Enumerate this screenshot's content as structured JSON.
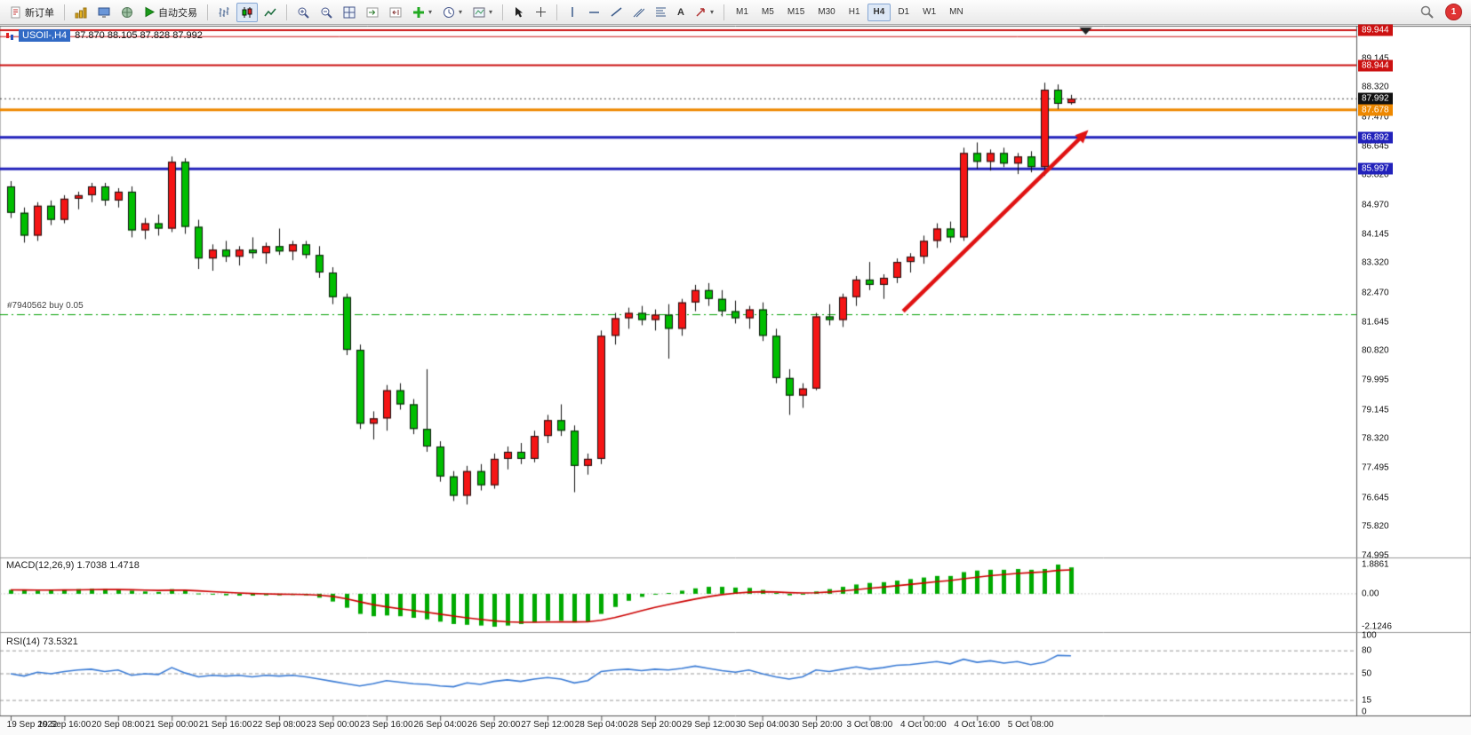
{
  "toolbar": {
    "new_order_label": "新订单",
    "autotrade_label": "自动交易",
    "text_tool_label": "A",
    "timeframes": [
      "M1",
      "M5",
      "M15",
      "M30",
      "H1",
      "H4",
      "D1",
      "W1",
      "MN"
    ],
    "active_timeframe": "H4",
    "notification_badge": "1"
  },
  "chart": {
    "symbol_label": "USOIl-,H4",
    "ohlc_text": "87.870 88.105 87.828 87.992",
    "position_label": "#7940562 buy 0.05"
  },
  "indicators": {
    "macd": {
      "name": "MACD(12,26,9)",
      "main_value": "1.7038",
      "signal_value": "1.4718"
    },
    "rsi": {
      "name": "RSI(14)",
      "value": "73.5321"
    }
  },
  "price_axis": {
    "labels": [
      "89.145",
      "88.320",
      "87.470",
      "86.645",
      "85.820",
      "84.970",
      "84.145",
      "83.320",
      "82.470",
      "81.645",
      "80.820",
      "79.995",
      "79.145",
      "78.320",
      "77.495",
      "76.645",
      "75.820",
      "74.995"
    ],
    "tags": [
      {
        "text": "89.944",
        "bg": "#CC1111"
      },
      {
        "text": "88.944",
        "bg": "#CC1111"
      },
      {
        "text": "87.992",
        "bg": "#111111"
      },
      {
        "text": "87.678",
        "bg": "#EE8800"
      },
      {
        "text": "86.892",
        "bg": "#2222BB"
      },
      {
        "text": "85.997",
        "bg": "#2222BB"
      }
    ]
  },
  "chart_data": {
    "type": "candlestick",
    "symbol": "USOIl-",
    "timeframe": "H4",
    "ohlc_current": {
      "open": 87.87,
      "high": 88.105,
      "low": 87.828,
      "close": 87.992
    },
    "candles": [
      [
        85.5,
        85.65,
        84.6,
        84.75
      ],
      [
        84.75,
        84.9,
        83.9,
        84.1
      ],
      [
        84.1,
        85.05,
        83.95,
        84.95
      ],
      [
        84.95,
        85.1,
        84.4,
        84.55
      ],
      [
        84.55,
        85.25,
        84.45,
        85.15
      ],
      [
        85.15,
        85.35,
        84.85,
        85.25
      ],
      [
        85.25,
        85.6,
        85.05,
        85.5
      ],
      [
        85.5,
        85.6,
        84.95,
        85.1
      ],
      [
        85.1,
        85.45,
        84.9,
        85.35
      ],
      [
        85.35,
        85.5,
        84.05,
        84.25
      ],
      [
        84.25,
        84.6,
        84.0,
        84.45
      ],
      [
        84.45,
        84.7,
        84.1,
        84.3
      ],
      [
        84.3,
        86.35,
        84.2,
        86.2
      ],
      [
        86.2,
        86.3,
        84.15,
        84.35
      ],
      [
        84.35,
        84.55,
        83.15,
        83.45
      ],
      [
        83.45,
        83.85,
        83.1,
        83.7
      ],
      [
        83.7,
        83.95,
        83.35,
        83.5
      ],
      [
        83.5,
        83.8,
        83.25,
        83.7
      ],
      [
        83.7,
        84.05,
        83.45,
        83.6
      ],
      [
        83.6,
        83.9,
        83.3,
        83.8
      ],
      [
        83.8,
        84.3,
        83.55,
        83.65
      ],
      [
        83.65,
        83.95,
        83.4,
        83.85
      ],
      [
        83.85,
        83.95,
        83.45,
        83.55
      ],
      [
        83.55,
        83.8,
        82.9,
        83.05
      ],
      [
        83.05,
        83.2,
        82.15,
        82.35
      ],
      [
        82.35,
        82.45,
        80.7,
        80.85
      ],
      [
        80.85,
        81.0,
        78.6,
        78.75
      ],
      [
        78.75,
        79.1,
        78.3,
        78.9
      ],
      [
        78.9,
        79.85,
        78.55,
        79.7
      ],
      [
        79.7,
        79.9,
        79.15,
        79.3
      ],
      [
        79.3,
        79.45,
        78.45,
        78.6
      ],
      [
        78.6,
        80.3,
        77.95,
        78.1
      ],
      [
        78.1,
        78.25,
        77.1,
        77.25
      ],
      [
        77.25,
        77.4,
        76.55,
        76.7
      ],
      [
        76.7,
        77.55,
        76.45,
        77.4
      ],
      [
        77.4,
        77.6,
        76.85,
        77.0
      ],
      [
        77.0,
        77.9,
        76.9,
        77.75
      ],
      [
        77.75,
        78.1,
        77.45,
        77.95
      ],
      [
        77.95,
        78.2,
        77.6,
        77.75
      ],
      [
        77.75,
        78.55,
        77.65,
        78.4
      ],
      [
        78.4,
        79.0,
        78.2,
        78.85
      ],
      [
        78.85,
        79.3,
        78.4,
        78.55
      ],
      [
        78.55,
        78.7,
        76.8,
        77.55
      ],
      [
        77.55,
        77.9,
        77.3,
        77.75
      ],
      [
        77.75,
        81.4,
        77.6,
        81.25
      ],
      [
        81.25,
        81.9,
        81.0,
        81.75
      ],
      [
        81.75,
        82.05,
        81.45,
        81.9
      ],
      [
        81.9,
        82.1,
        81.55,
        81.7
      ],
      [
        81.7,
        82.0,
        81.4,
        81.85
      ],
      [
        81.85,
        82.15,
        80.6,
        81.45
      ],
      [
        81.45,
        82.3,
        81.25,
        82.2
      ],
      [
        82.2,
        82.7,
        81.95,
        82.55
      ],
      [
        82.55,
        82.75,
        82.1,
        82.3
      ],
      [
        82.3,
        82.55,
        81.8,
        81.95
      ],
      [
        81.95,
        82.25,
        81.6,
        81.75
      ],
      [
        81.75,
        82.1,
        81.45,
        82.0
      ],
      [
        82.0,
        82.2,
        81.1,
        81.25
      ],
      [
        81.25,
        81.45,
        79.9,
        80.05
      ],
      [
        80.05,
        80.3,
        79.0,
        79.55
      ],
      [
        79.55,
        79.9,
        79.2,
        79.75
      ],
      [
        79.75,
        81.9,
        79.7,
        81.8
      ],
      [
        81.8,
        82.15,
        81.55,
        81.7
      ],
      [
        81.7,
        82.45,
        81.5,
        82.35
      ],
      [
        82.35,
        82.95,
        82.1,
        82.85
      ],
      [
        82.85,
        83.35,
        82.55,
        82.7
      ],
      [
        82.7,
        83.0,
        82.3,
        82.9
      ],
      [
        82.9,
        83.45,
        82.75,
        83.35
      ],
      [
        83.35,
        83.6,
        83.05,
        83.5
      ],
      [
        83.5,
        84.1,
        83.3,
        83.95
      ],
      [
        83.95,
        84.45,
        83.75,
        84.3
      ],
      [
        84.3,
        84.5,
        83.9,
        84.05
      ],
      [
        84.05,
        86.6,
        83.95,
        86.45
      ],
      [
        86.45,
        86.75,
        86.0,
        86.2
      ],
      [
        86.2,
        86.55,
        85.95,
        86.45
      ],
      [
        86.45,
        86.6,
        86.05,
        86.15
      ],
      [
        86.15,
        86.45,
        85.85,
        86.35
      ],
      [
        86.35,
        86.5,
        85.9,
        86.05
      ],
      [
        86.05,
        88.45,
        85.8,
        88.25
      ],
      [
        88.25,
        88.4,
        87.7,
        87.85
      ],
      [
        87.87,
        88.105,
        87.828,
        87.992
      ]
    ],
    "time_labels": [
      "19 Sep 2022",
      "19 Sep 16:00",
      "20 Sep 08:00",
      "21 Sep 00:00",
      "21 Sep 16:00",
      "22 Sep 08:00",
      "23 Sep 00:00",
      "23 Sep 16:00",
      "26 Sep 04:00",
      "26 Sep 20:00",
      "27 Sep 12:00",
      "28 Sep 04:00",
      "28 Sep 20:00",
      "29 Sep 12:00",
      "30 Sep 04:00",
      "30 Sep 20:00",
      "3 Oct 08:00",
      "4 Oct 00:00",
      "4 Oct 16:00",
      "5 Oct 08:00"
    ],
    "hlines": [
      {
        "price": 89.944,
        "color": "#CC1111",
        "width": 2
      },
      {
        "price": 89.76,
        "color": "#CC1111",
        "width": 1
      },
      {
        "price": 88.944,
        "color": "#CC1111",
        "width": 2
      },
      {
        "price": 87.678,
        "color": "#EE8800",
        "width": 3
      },
      {
        "price": 86.892,
        "color": "#2222BB",
        "width": 3
      },
      {
        "price": 85.997,
        "color": "#2222BB",
        "width": 3
      }
    ],
    "current_price": 87.992,
    "position_line": {
      "price": 81.85,
      "label": "#7940562 buy 0.05"
    },
    "trend_arrow": {
      "from_index": 66.5,
      "from_price": 81.95,
      "to_index": 80.3,
      "to_price": 87.1
    },
    "shift_marker_index": 80.1,
    "macd": {
      "main": [
        0.25,
        0.22,
        0.2,
        0.24,
        0.28,
        0.3,
        0.32,
        0.3,
        0.28,
        0.2,
        0.15,
        0.12,
        0.3,
        0.22,
        0.02,
        -0.05,
        -0.1,
        -0.12,
        -0.12,
        -0.1,
        -0.1,
        -0.08,
        -0.1,
        -0.25,
        -0.5,
        -0.9,
        -1.3,
        -1.45,
        -1.4,
        -1.45,
        -1.55,
        -1.65,
        -1.8,
        -1.95,
        -2.0,
        -2.05,
        -2.1246,
        -2.05,
        -1.95,
        -1.85,
        -1.75,
        -1.75,
        -1.85,
        -1.8,
        -1.3,
        -0.85,
        -0.45,
        -0.2,
        0.0,
        0.05,
        0.2,
        0.35,
        0.45,
        0.45,
        0.4,
        0.38,
        0.25,
        0.05,
        -0.1,
        -0.05,
        0.15,
        0.3,
        0.45,
        0.6,
        0.7,
        0.75,
        0.85,
        0.95,
        1.05,
        1.15,
        1.15,
        1.4,
        1.5,
        1.55,
        1.55,
        1.6,
        1.55,
        1.6,
        1.8861,
        1.7038
      ],
      "scale": [
        "1.8861",
        "0.00",
        "-2.1246"
      ]
    },
    "rsi": {
      "values": [
        50,
        47,
        52,
        50,
        53,
        55,
        56,
        53,
        55,
        48,
        50,
        49,
        58,
        51,
        46,
        48,
        47,
        48,
        46,
        48,
        47,
        48,
        46,
        43,
        40,
        37,
        34,
        37,
        41,
        39,
        37,
        36,
        34,
        33,
        38,
        36,
        40,
        42,
        40,
        43,
        45,
        43,
        38,
        41,
        53,
        55,
        56,
        54,
        56,
        55,
        57,
        60,
        57,
        54,
        52,
        55,
        50,
        46,
        43,
        46,
        55,
        53,
        56,
        59,
        56,
        58,
        61,
        62,
        64,
        66,
        63,
        69,
        65,
        67,
        64,
        66,
        62,
        65,
        74,
        73.5321
      ],
      "levels": [
        80,
        50,
        15
      ],
      "scale": [
        "100",
        "80",
        "50",
        "15",
        "0"
      ]
    },
    "colors": {
      "up": "#F51515",
      "down": "#00BE00",
      "outline": "#111111",
      "macd_hist": "#00AA00",
      "macd_signal": "#CC0000",
      "rsi_line": "#3A7BD5",
      "arrow": "#E01212",
      "position_line": "#00A000",
      "current_price_line": "#444444"
    }
  }
}
